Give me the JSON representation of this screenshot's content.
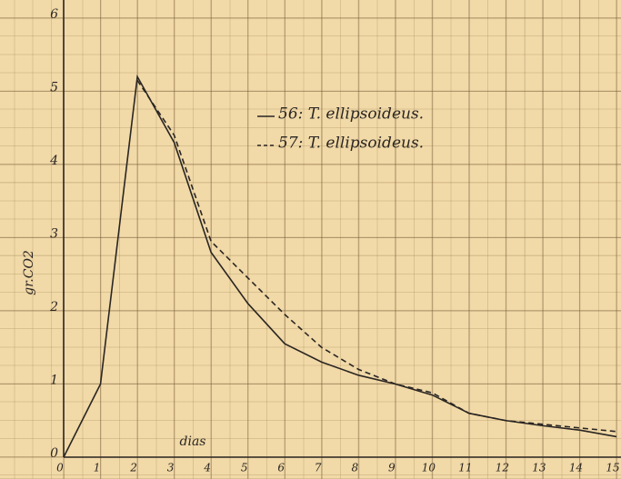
{
  "chart_data": {
    "type": "line",
    "x": [
      0,
      1,
      2,
      3,
      4,
      5,
      6,
      7,
      8,
      9,
      10,
      11,
      12,
      13,
      14,
      15
    ],
    "series": [
      {
        "name": "56: T. ellipsoideus.",
        "color": "#2a2622",
        "style": "solid",
        "values": [
          0,
          1,
          5.2,
          4.3,
          2.8,
          2.1,
          1.55,
          1.3,
          1.12,
          1.0,
          0.85,
          0.6,
          0.5,
          0.43,
          0.37,
          0.28
        ]
      },
      {
        "name": "57: T. ellipsoideus.",
        "color": "#2a2622",
        "style": "dashed",
        "values": [
          null,
          null,
          5.15,
          4.4,
          2.95,
          2.45,
          1.95,
          1.5,
          1.2,
          1.0,
          0.88,
          0.6,
          0.5,
          0.45,
          0.4,
          0.35
        ]
      }
    ],
    "x_label": "dias",
    "y_label": "gr.CO2",
    "xlim": [
      0,
      15
    ],
    "ylim": [
      0,
      6
    ],
    "xticks": [
      0,
      1,
      2,
      3,
      4,
      5,
      6,
      7,
      8,
      9,
      10,
      11,
      12,
      13,
      14,
      15
    ],
    "yticks": [
      0,
      1,
      2,
      3,
      4,
      5,
      6
    ],
    "grid": true,
    "legend": "upper right"
  }
}
